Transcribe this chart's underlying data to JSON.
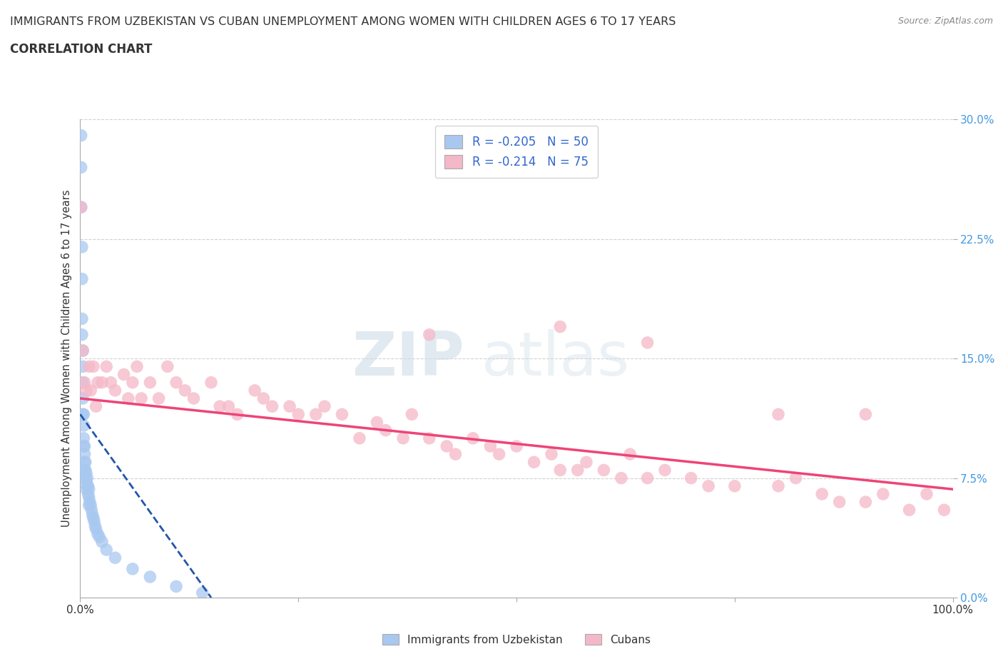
{
  "title": "IMMIGRANTS FROM UZBEKISTAN VS CUBAN UNEMPLOYMENT AMONG WOMEN WITH CHILDREN AGES 6 TO 17 YEARS",
  "subtitle": "CORRELATION CHART",
  "source": "Source: ZipAtlas.com",
  "ylabel": "Unemployment Among Women with Children Ages 6 to 17 years",
  "xlim": [
    0.0,
    1.0
  ],
  "ylim": [
    0.0,
    0.3
  ],
  "legend_r_uzbek": "-0.205",
  "legend_n_uzbek": "50",
  "legend_r_cuban": "-0.214",
  "legend_n_cuban": "75",
  "color_uzbek": "#a8c8f0",
  "color_cuban": "#f5b8c8",
  "color_uzbek_line": "#2255aa",
  "color_cuban_line": "#ee4477",
  "watermark_zip": "ZIP",
  "watermark_atlas": "atlas",
  "background_color": "#ffffff",
  "grid_color": "#cccccc",
  "uzbek_scatter_x": [
    0.001,
    0.001,
    0.001,
    0.002,
    0.002,
    0.002,
    0.002,
    0.003,
    0.003,
    0.003,
    0.003,
    0.003,
    0.004,
    0.004,
    0.004,
    0.004,
    0.005,
    0.005,
    0.005,
    0.005,
    0.006,
    0.006,
    0.006,
    0.007,
    0.007,
    0.007,
    0.008,
    0.008,
    0.009,
    0.009,
    0.01,
    0.01,
    0.01,
    0.011,
    0.012,
    0.013,
    0.014,
    0.015,
    0.016,
    0.017,
    0.018,
    0.02,
    0.022,
    0.025,
    0.03,
    0.04,
    0.06,
    0.08,
    0.11,
    0.14
  ],
  "uzbek_scatter_y": [
    0.29,
    0.27,
    0.245,
    0.22,
    0.2,
    0.175,
    0.165,
    0.155,
    0.145,
    0.135,
    0.125,
    0.115,
    0.115,
    0.108,
    0.1,
    0.095,
    0.095,
    0.09,
    0.085,
    0.08,
    0.085,
    0.08,
    0.075,
    0.078,
    0.073,
    0.068,
    0.075,
    0.07,
    0.07,
    0.065,
    0.068,
    0.063,
    0.058,
    0.06,
    0.058,
    0.055,
    0.052,
    0.05,
    0.048,
    0.045,
    0.043,
    0.04,
    0.038,
    0.035,
    0.03,
    0.025,
    0.018,
    0.013,
    0.007,
    0.003
  ],
  "cuban_scatter_x": [
    0.001,
    0.003,
    0.005,
    0.007,
    0.01,
    0.012,
    0.015,
    0.018,
    0.02,
    0.025,
    0.03,
    0.035,
    0.04,
    0.05,
    0.055,
    0.06,
    0.065,
    0.07,
    0.08,
    0.09,
    0.1,
    0.11,
    0.12,
    0.13,
    0.15,
    0.16,
    0.17,
    0.18,
    0.2,
    0.21,
    0.22,
    0.24,
    0.25,
    0.27,
    0.28,
    0.3,
    0.32,
    0.34,
    0.35,
    0.37,
    0.38,
    0.4,
    0.42,
    0.43,
    0.45,
    0.47,
    0.48,
    0.5,
    0.52,
    0.54,
    0.55,
    0.57,
    0.58,
    0.6,
    0.62,
    0.63,
    0.65,
    0.67,
    0.7,
    0.72,
    0.75,
    0.8,
    0.82,
    0.85,
    0.87,
    0.9,
    0.92,
    0.95,
    0.97,
    0.99,
    0.4,
    0.55,
    0.65,
    0.8,
    0.9
  ],
  "cuban_scatter_y": [
    0.245,
    0.155,
    0.135,
    0.13,
    0.145,
    0.13,
    0.145,
    0.12,
    0.135,
    0.135,
    0.145,
    0.135,
    0.13,
    0.14,
    0.125,
    0.135,
    0.145,
    0.125,
    0.135,
    0.125,
    0.145,
    0.135,
    0.13,
    0.125,
    0.135,
    0.12,
    0.12,
    0.115,
    0.13,
    0.125,
    0.12,
    0.12,
    0.115,
    0.115,
    0.12,
    0.115,
    0.1,
    0.11,
    0.105,
    0.1,
    0.115,
    0.1,
    0.095,
    0.09,
    0.1,
    0.095,
    0.09,
    0.095,
    0.085,
    0.09,
    0.08,
    0.08,
    0.085,
    0.08,
    0.075,
    0.09,
    0.075,
    0.08,
    0.075,
    0.07,
    0.07,
    0.07,
    0.075,
    0.065,
    0.06,
    0.06,
    0.065,
    0.055,
    0.065,
    0.055,
    0.165,
    0.17,
    0.16,
    0.115,
    0.115
  ],
  "uzbek_trend_x": [
    0.0,
    0.15
  ],
  "uzbek_trend_y": [
    0.115,
    0.0
  ],
  "cuban_trend_x": [
    0.0,
    1.0
  ],
  "cuban_trend_y": [
    0.125,
    0.068
  ]
}
